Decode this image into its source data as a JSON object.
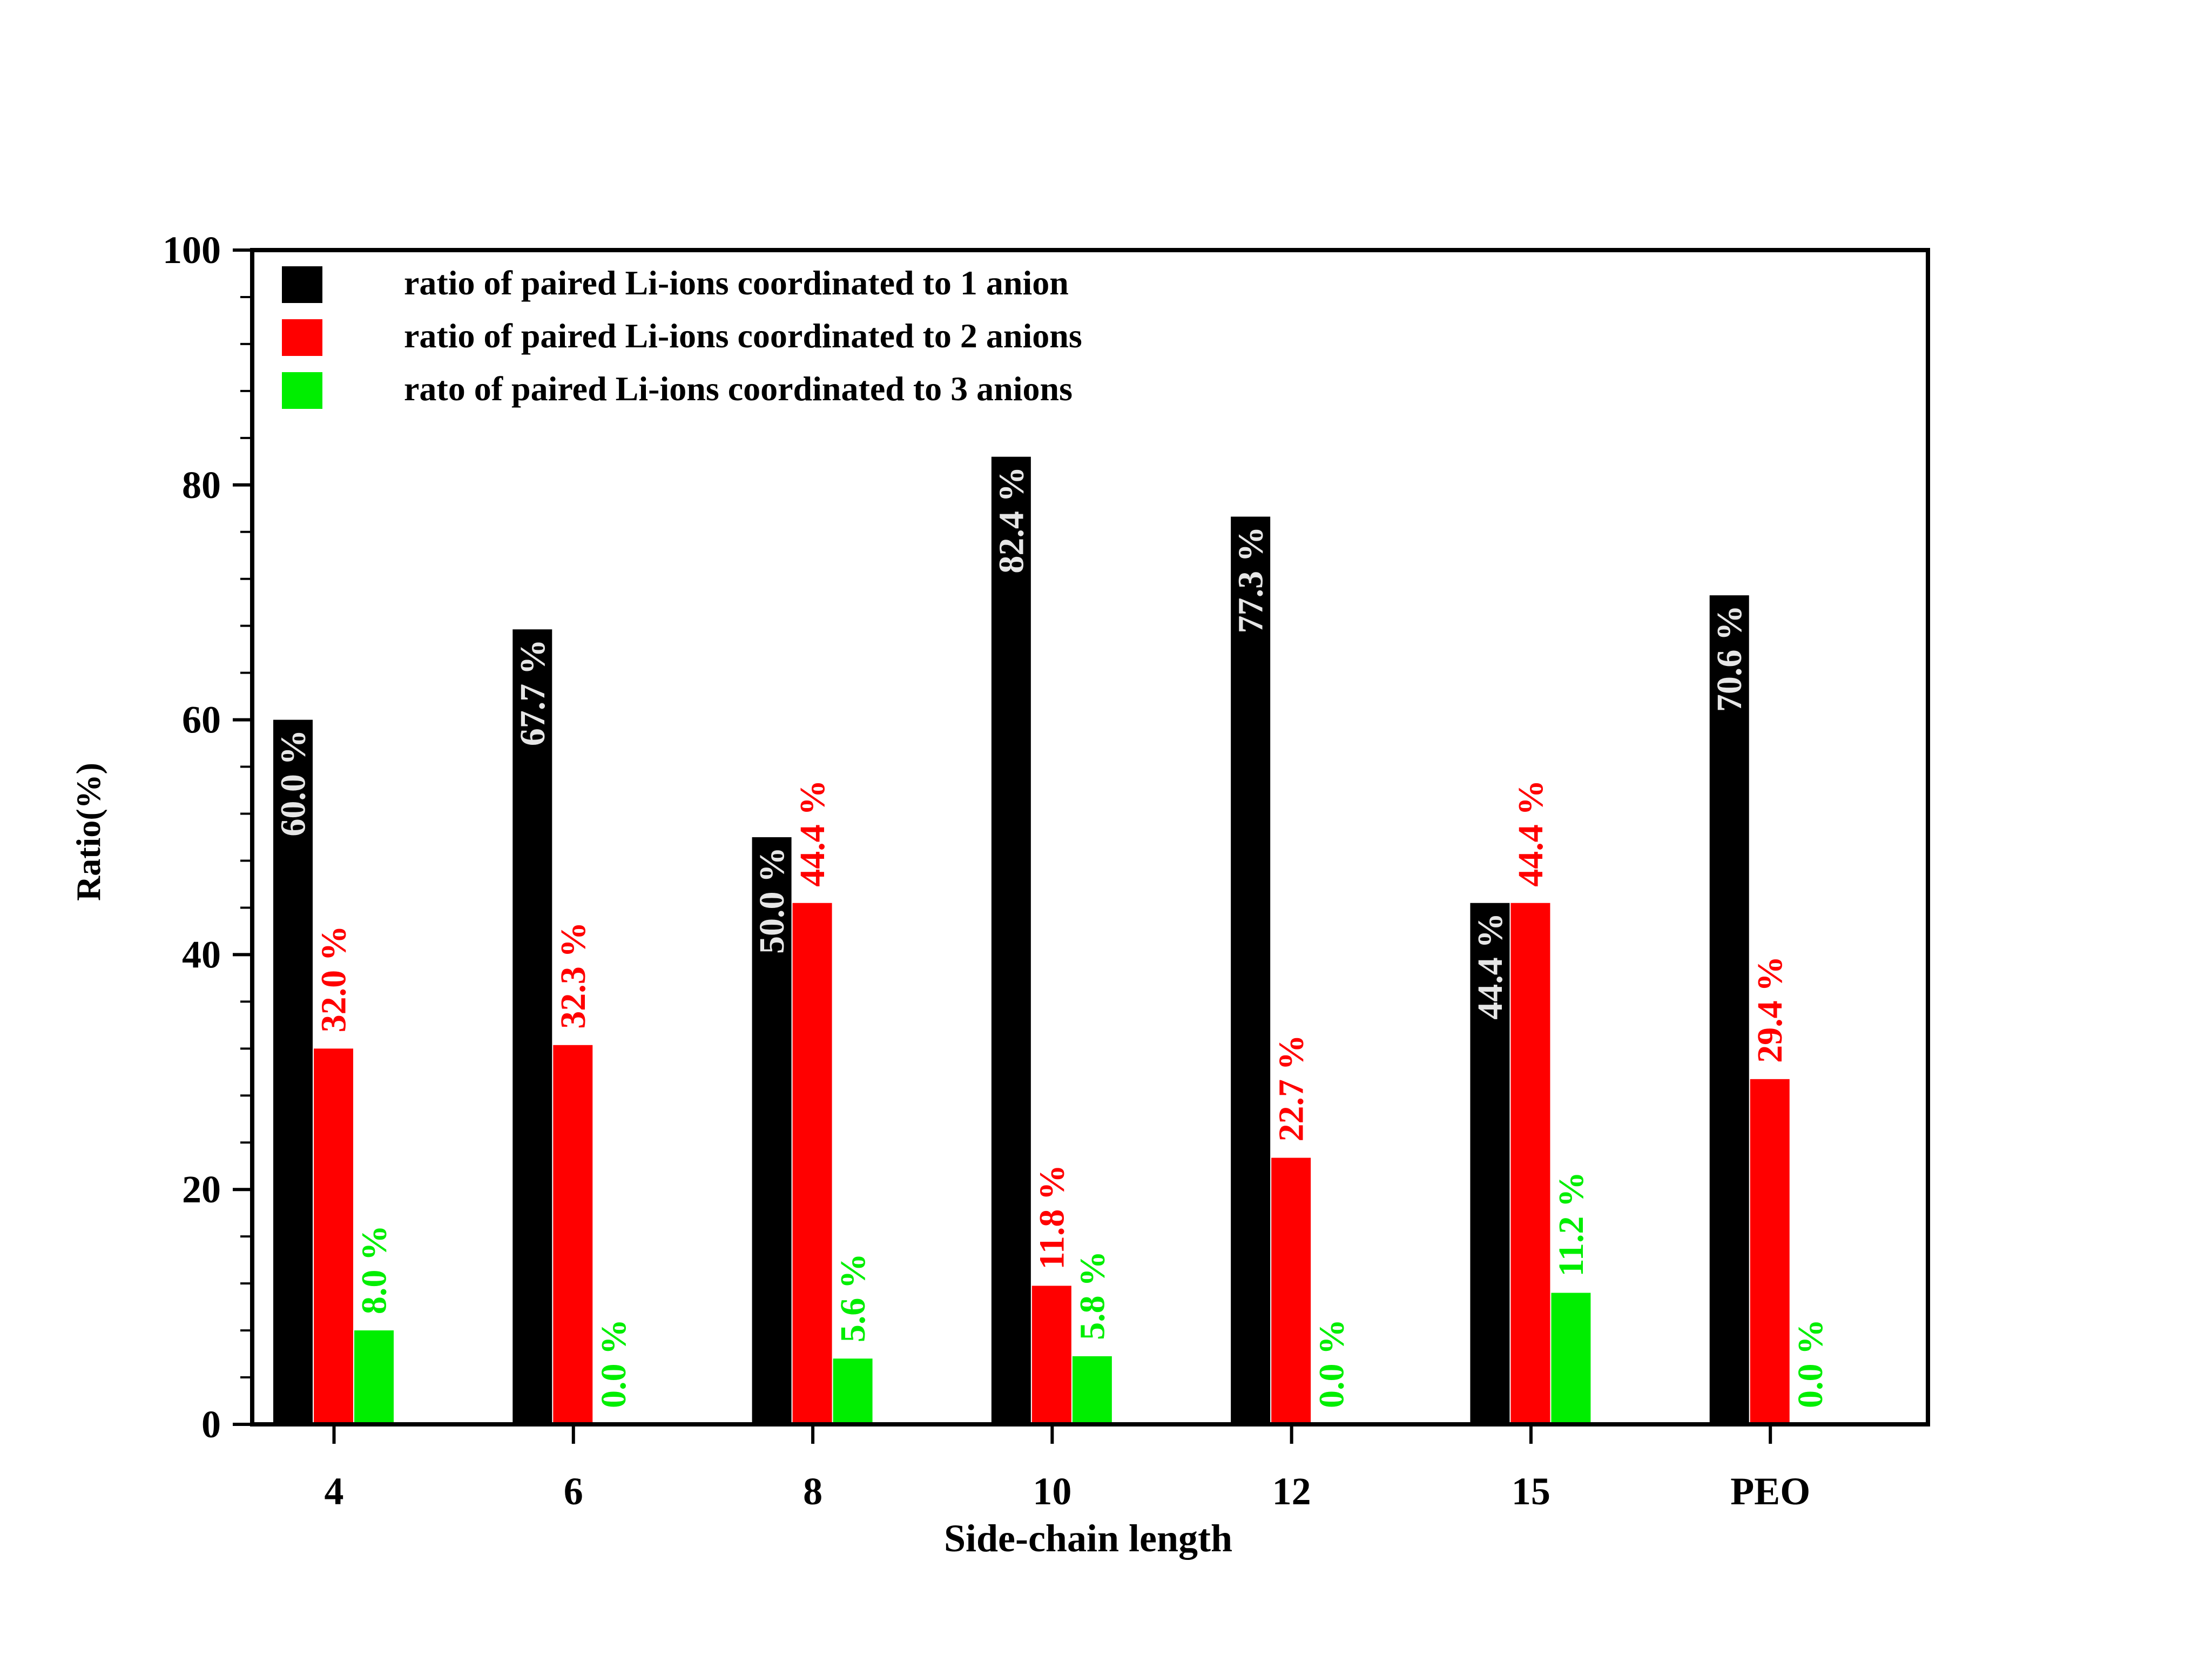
{
  "chart_data": {
    "type": "bar",
    "title": "",
    "xlabel": "Side-chain length",
    "ylabel": "Ratio(%)",
    "ylim": [
      0,
      100
    ],
    "y_ticks": [
      "0",
      "20",
      "40",
      "60",
      "80",
      "100"
    ],
    "categories": [
      "4",
      "6",
      "8",
      "10",
      "12",
      "15",
      "PEO"
    ],
    "legend_position": "top-left",
    "grid": false,
    "series": [
      {
        "name": "ratio of paired Li-ions coordinated to 1 anion",
        "color": "#000000",
        "label_color": "#e6e6e6",
        "values": [
          60.0,
          67.7,
          50.0,
          82.4,
          77.3,
          44.4,
          70.6
        ],
        "labels": [
          "60.0 %",
          "67.7 %",
          "50.0 %",
          "82.4 %",
          "77.3 %",
          "44.4 %",
          "70.6 %"
        ]
      },
      {
        "name": "ratio of paired Li-ions coordinated to 2 anions",
        "color": "#ff0000",
        "label_color": "#ff0000",
        "values": [
          32.0,
          32.3,
          44.4,
          11.8,
          22.7,
          44.4,
          29.4
        ],
        "labels": [
          "32.0 %",
          "32.3 %",
          "44.4 %",
          "11.8 %",
          "22.7 %",
          "44.4 %",
          "29.4 %"
        ]
      },
      {
        "name": "rato of paired Li-ions coordinated to 3 anions",
        "color": "#00ee00",
        "label_color": "#00ee00",
        "values": [
          8.0,
          0.0,
          5.6,
          5.8,
          0.0,
          11.2,
          0.0
        ],
        "labels": [
          "8.0 %",
          "0.0 %",
          "5.6 %",
          "5.8 %",
          "0.0 %",
          "11.2 %",
          "0.0 %"
        ]
      }
    ]
  }
}
